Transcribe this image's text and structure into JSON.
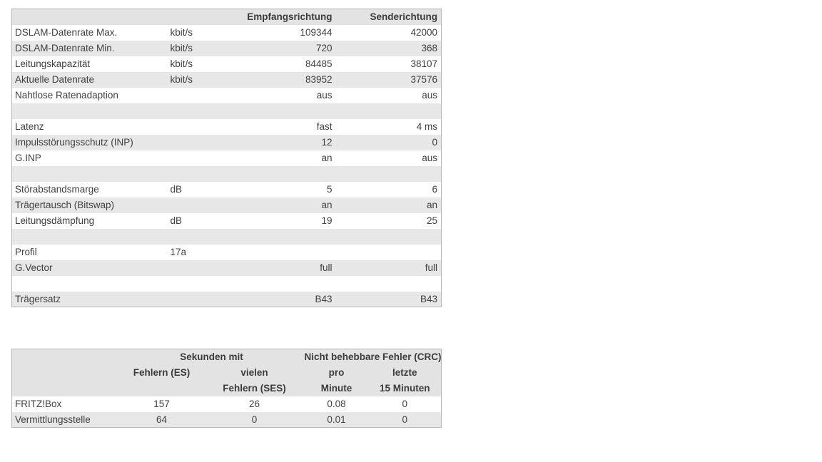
{
  "colors": {
    "table_border": "#b8b4ae",
    "header_row_bg": "#e3e3e3",
    "alt_row_bg": "#e7e7e7",
    "text": "#404040"
  },
  "dsl_table": {
    "col_headers": {
      "label": "",
      "unit": "",
      "rx": "Empfangsrichtung",
      "tx": "Senderichtung"
    },
    "rows": [
      {
        "label": "DSLAM-Datenrate Max.",
        "unit": "kbit/s",
        "rx": "109344",
        "tx": "42000"
      },
      {
        "label": "DSLAM-Datenrate Min.",
        "unit": "kbit/s",
        "rx": "720",
        "tx": "368"
      },
      {
        "label": "Leitungskapazität",
        "unit": "kbit/s",
        "rx": "84485",
        "tx": "38107"
      },
      {
        "label": "Aktuelle Datenrate",
        "unit": "kbit/s",
        "rx": "83952",
        "tx": "37576"
      },
      {
        "label": "Nahtlose Ratenadaption",
        "unit": "",
        "rx": "aus",
        "tx": "aus"
      },
      {
        "label": "",
        "unit": "",
        "rx": "",
        "tx": ""
      },
      {
        "label": "Latenz",
        "unit": "",
        "rx": "fast",
        "tx": "4 ms"
      },
      {
        "label": "Impulsstörungsschutz (INP)",
        "unit": "",
        "rx": "12",
        "tx": "0"
      },
      {
        "label": "G.INP",
        "unit": "",
        "rx": "an",
        "tx": "aus"
      },
      {
        "label": "",
        "unit": "",
        "rx": "",
        "tx": ""
      },
      {
        "label": "Störabstandsmarge",
        "unit": "dB",
        "rx": "5",
        "tx": "6"
      },
      {
        "label": "Trägertausch (Bitswap)",
        "unit": "",
        "rx": "an",
        "tx": "an"
      },
      {
        "label": "Leitungsdämpfung",
        "unit": "dB",
        "rx": "19",
        "tx": "25"
      },
      {
        "label": "",
        "unit": "",
        "rx": "",
        "tx": ""
      },
      {
        "label": "Profil",
        "unit": "17a",
        "rx": "",
        "tx": ""
      },
      {
        "label": "G.Vector",
        "unit": "",
        "rx": "full",
        "tx": "full"
      },
      {
        "label": "",
        "unit": "",
        "rx": "",
        "tx": ""
      },
      {
        "label": "Trägersatz",
        "unit": "",
        "rx": "B43",
        "tx": "B43"
      }
    ]
  },
  "error_table": {
    "group_headers": {
      "seconds": "Sekunden mit",
      "crc": "Nicht behebbare Fehler (CRC)"
    },
    "sub_headers_line1": {
      "es": "Fehlern (ES)",
      "ses": "vielen",
      "per_min": "pro",
      "last15": "letzte"
    },
    "sub_headers_line2": {
      "es": "",
      "ses": "Fehlern (SES)",
      "per_min": "Minute",
      "last15": "15 Minuten"
    },
    "rows": [
      {
        "label": "FRITZ!Box",
        "es": "157",
        "ses": "26",
        "per_min": "0.08",
        "last15": "0"
      },
      {
        "label": "Vermittlungsstelle",
        "es": "64",
        "ses": "0",
        "per_min": "0.01",
        "last15": "0"
      }
    ]
  }
}
